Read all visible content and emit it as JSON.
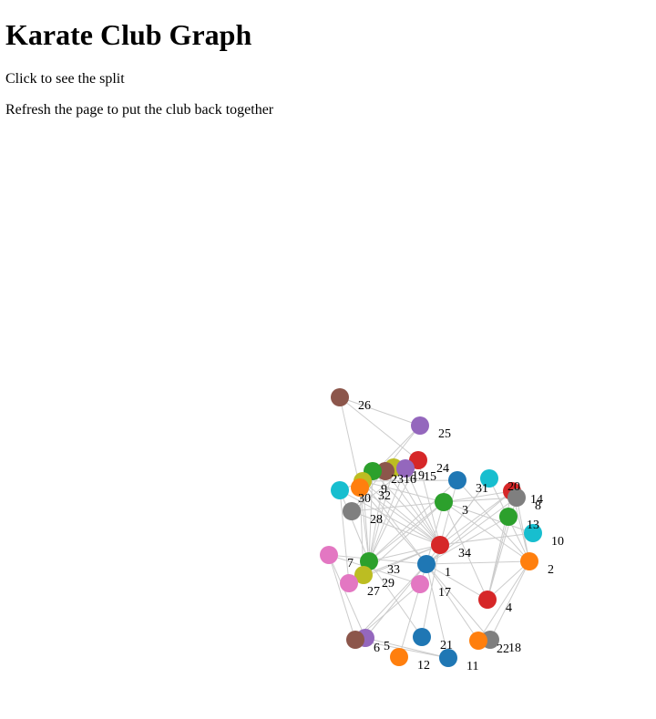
{
  "title": "Karate Club Graph",
  "instructions": {
    "click": "Click to see the split",
    "refresh": "Refresh the page to put the club back together"
  },
  "graph": {
    "nodes": [
      "1",
      "2",
      "3",
      "4",
      "5",
      "6",
      "7",
      "8",
      "9",
      "10",
      "11",
      "12",
      "13",
      "14",
      "15",
      "16",
      "17",
      "18",
      "19",
      "20",
      "21",
      "22",
      "23",
      "24",
      "25",
      "26",
      "27",
      "28",
      "29",
      "30",
      "31",
      "32",
      "33",
      "34"
    ],
    "node_colors": {
      "1": "#1f77b4",
      "2": "#ff7f0e",
      "3": "#2ca02c",
      "4": "#d62728",
      "5": "#9467bd",
      "6": "#8c564b",
      "7": "#e377c2",
      "8": "#7f7f7f",
      "9": "#bcbd22",
      "10": "#17becf",
      "11": "#1f77b4",
      "12": "#ff7f0e",
      "13": "#2ca02c",
      "14": "#d62728",
      "15": "#9467bd",
      "16": "#8c564b",
      "17": "#e377c2",
      "18": "#7f7f7f",
      "19": "#bcbd22",
      "20": "#17becf",
      "21": "#1f77b4",
      "22": "#ff7f0e",
      "23": "#2ca02c",
      "24": "#d62728",
      "25": "#9467bd",
      "26": "#8c564b",
      "27": "#e377c2",
      "28": "#7f7f7f",
      "29": "#bcbd22",
      "30": "#17becf",
      "31": "#1f77b4",
      "32": "#ff7f0e",
      "33": "#2ca02c",
      "34": "#d62728"
    },
    "edges": [
      [
        "1",
        "2"
      ],
      [
        "1",
        "3"
      ],
      [
        "1",
        "4"
      ],
      [
        "1",
        "5"
      ],
      [
        "1",
        "6"
      ],
      [
        "1",
        "7"
      ],
      [
        "1",
        "8"
      ],
      [
        "1",
        "9"
      ],
      [
        "1",
        "11"
      ],
      [
        "1",
        "12"
      ],
      [
        "1",
        "13"
      ],
      [
        "1",
        "14"
      ],
      [
        "1",
        "18"
      ],
      [
        "1",
        "20"
      ],
      [
        "1",
        "22"
      ],
      [
        "1",
        "32"
      ],
      [
        "2",
        "3"
      ],
      [
        "2",
        "4"
      ],
      [
        "2",
        "8"
      ],
      [
        "2",
        "14"
      ],
      [
        "2",
        "18"
      ],
      [
        "2",
        "20"
      ],
      [
        "2",
        "22"
      ],
      [
        "2",
        "31"
      ],
      [
        "3",
        "4"
      ],
      [
        "3",
        "8"
      ],
      [
        "3",
        "9"
      ],
      [
        "3",
        "10"
      ],
      [
        "3",
        "14"
      ],
      [
        "3",
        "28"
      ],
      [
        "3",
        "29"
      ],
      [
        "3",
        "33"
      ],
      [
        "4",
        "8"
      ],
      [
        "4",
        "13"
      ],
      [
        "4",
        "14"
      ],
      [
        "5",
        "7"
      ],
      [
        "5",
        "11"
      ],
      [
        "6",
        "7"
      ],
      [
        "6",
        "11"
      ],
      [
        "6",
        "17"
      ],
      [
        "7",
        "17"
      ],
      [
        "9",
        "31"
      ],
      [
        "9",
        "33"
      ],
      [
        "9",
        "34"
      ],
      [
        "10",
        "34"
      ],
      [
        "14",
        "34"
      ],
      [
        "15",
        "33"
      ],
      [
        "15",
        "34"
      ],
      [
        "16",
        "33"
      ],
      [
        "16",
        "34"
      ],
      [
        "19",
        "33"
      ],
      [
        "19",
        "34"
      ],
      [
        "20",
        "34"
      ],
      [
        "21",
        "33"
      ],
      [
        "21",
        "34"
      ],
      [
        "23",
        "33"
      ],
      [
        "23",
        "34"
      ],
      [
        "24",
        "26"
      ],
      [
        "24",
        "28"
      ],
      [
        "24",
        "30"
      ],
      [
        "24",
        "33"
      ],
      [
        "24",
        "34"
      ],
      [
        "25",
        "26"
      ],
      [
        "25",
        "28"
      ],
      [
        "25",
        "32"
      ],
      [
        "26",
        "32"
      ],
      [
        "27",
        "30"
      ],
      [
        "27",
        "34"
      ],
      [
        "28",
        "34"
      ],
      [
        "29",
        "32"
      ],
      [
        "29",
        "34"
      ],
      [
        "30",
        "33"
      ],
      [
        "30",
        "34"
      ],
      [
        "31",
        "33"
      ],
      [
        "31",
        "34"
      ],
      [
        "32",
        "33"
      ],
      [
        "32",
        "34"
      ],
      [
        "33",
        "34"
      ]
    ]
  }
}
